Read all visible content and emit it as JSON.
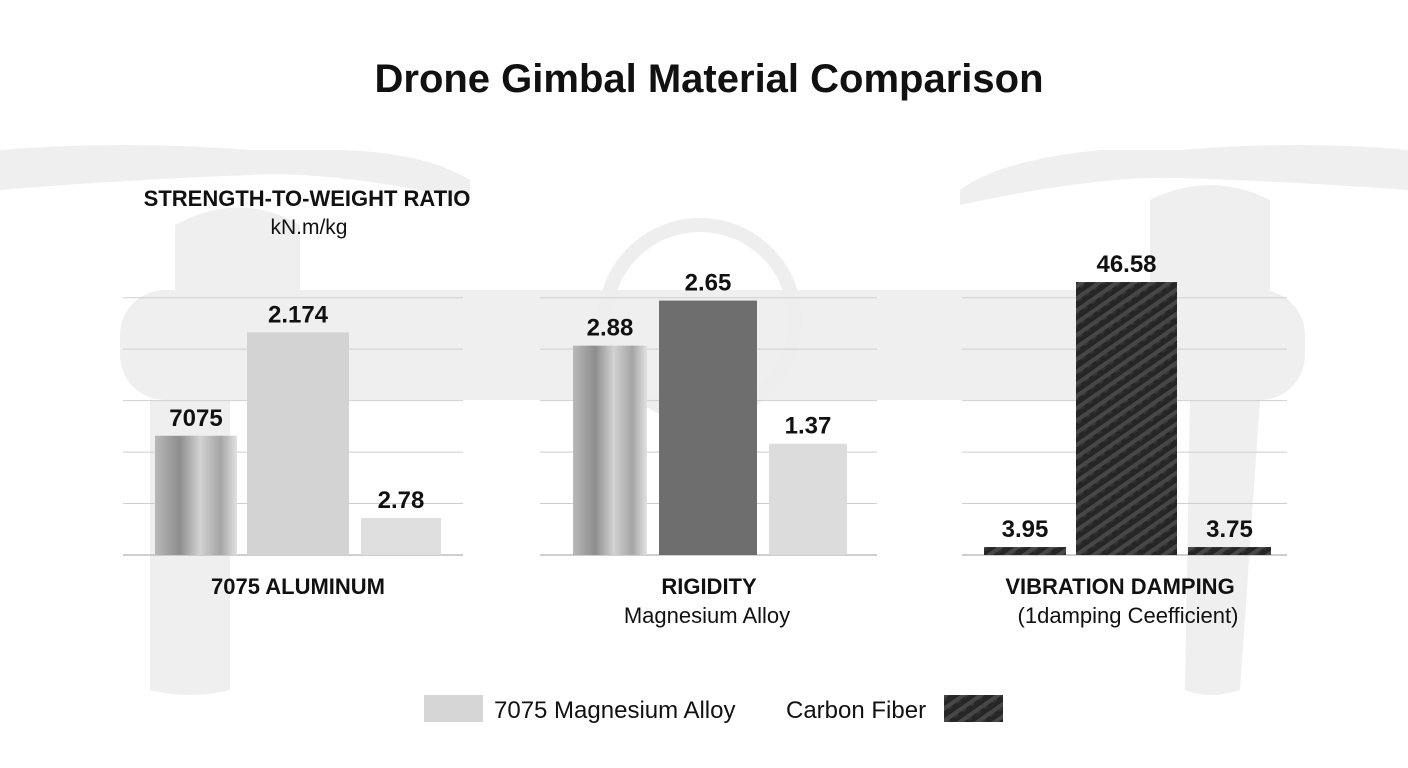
{
  "chart_data": {
    "type": "bar",
    "title": "Drone Gimbal Material Comparison",
    "grid": true,
    "legend_position": "bottom",
    "legend": [
      {
        "label": "7075 Magnesium Alloy",
        "swatch": "#d6d6d6"
      },
      {
        "label": "Carbon Fiber",
        "swatch": "carbon-fiber-pattern"
      }
    ],
    "panels": [
      {
        "heading": "STRENGTH-TO-WEIGHT RATIO",
        "unit": "kN.m/kg",
        "xlabel": "7075 ALUMINUM",
        "sublabel": "",
        "bars": [
          {
            "label": "7075",
            "level": 0.45,
            "fill": "metal-gradient"
          },
          {
            "label": "2.174",
            "level": 0.84,
            "fill": "#d3d3d3"
          },
          {
            "label": "2.78",
            "level": 0.14,
            "fill": "#dedede"
          }
        ]
      },
      {
        "heading": "",
        "unit": "",
        "xlabel": "RIGIDITY",
        "sublabel": "Magnesium Alloy",
        "bars": [
          {
            "label": "2.88",
            "level": 0.79,
            "fill": "metal-gradient"
          },
          {
            "label": "2.65",
            "level": 0.96,
            "fill": "#6e6e6e"
          },
          {
            "label": "1.37",
            "level": 0.42,
            "fill": "#dcdcdc"
          }
        ]
      },
      {
        "heading": "",
        "unit": "",
        "xlabel": "VIBRATION DAMPING",
        "sublabel": "(1damping Ceefficient)",
        "bars": [
          {
            "label": "3.95",
            "level": 0.03,
            "fill": "carbon-fiber-pattern"
          },
          {
            "label": "46.58",
            "level": 1.03,
            "fill": "carbon-fiber-pattern"
          },
          {
            "label": "3.75",
            "level": 0.03,
            "fill": "carbon-fiber-pattern"
          }
        ]
      }
    ]
  }
}
